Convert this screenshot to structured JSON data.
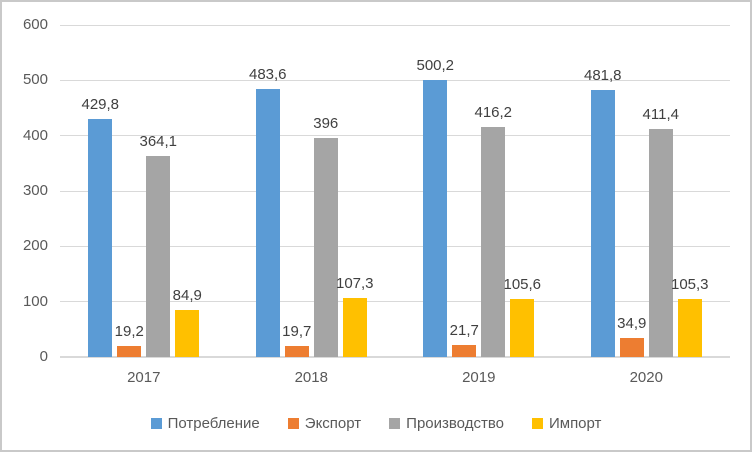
{
  "chart_data": {
    "type": "bar",
    "title": "",
    "xlabel": "",
    "ylabel": "",
    "categories": [
      "2017",
      "2018",
      "2019",
      "2020"
    ],
    "series": [
      {
        "name": "Потребление",
        "color": "#5B9BD5",
        "values": [
          429.8,
          483.6,
          500.2,
          481.8
        ],
        "labels": [
          "429,8",
          "483,6",
          "500,2",
          "481,8"
        ]
      },
      {
        "name": "Экспорт",
        "color": "#ED7D31",
        "values": [
          19.2,
          19.7,
          21.7,
          34.9
        ],
        "labels": [
          "19,2",
          "19,7",
          "21,7",
          "34,9"
        ]
      },
      {
        "name": "Производство",
        "color": "#A5A5A5",
        "values": [
          364.1,
          396,
          416.2,
          411.4
        ],
        "labels": [
          "364,1",
          "396",
          "416,2",
          "411,4"
        ]
      },
      {
        "name": "Импорт",
        "color": "#FFC000",
        "values": [
          84.9,
          107.3,
          105.6,
          105.3
        ],
        "labels": [
          "84,9",
          "107,3",
          "105,6",
          "105,3"
        ]
      }
    ],
    "y_axis": {
      "min": 0,
      "max": 600,
      "step": 100,
      "ticks": [
        "0",
        "100",
        "200",
        "300",
        "400",
        "500",
        "600"
      ]
    },
    "ylim": [
      0,
      600
    ],
    "grid": true,
    "legend_position": "bottom",
    "colors": {
      "gridline": "#D9D9D9",
      "axis_line": "#D9D9D9",
      "axis_label": "#595959",
      "data_label": "#404040",
      "border": "#C9C9C9",
      "background": "#FFFFFF"
    }
  }
}
